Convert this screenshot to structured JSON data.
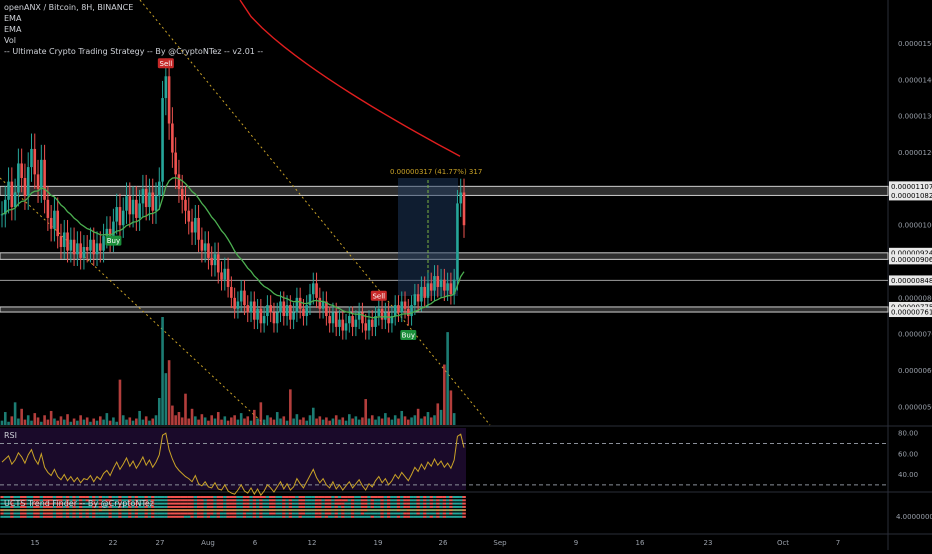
{
  "legend": {
    "symbol": "openANX / Bitcoin, 8H, BINANCE",
    "ema1": "EMA",
    "ema2": "EMA",
    "vol": "Vol",
    "strategy": "-- Ultimate Crypto Trading Strategy -- By @CryptoNTez -- v2.01 --"
  },
  "rsi_label": "RSI",
  "trend_label": "UCTS Trend Finder -- By @CryptoNTez",
  "colors": {
    "background": "#000000",
    "up": "#26a69a",
    "down": "#ef5350",
    "ema_fast": "#4caf50",
    "ema_slow": "#e01e1e",
    "rsi_line": "#c9a227",
    "rsi_fill": "#1a0a2a",
    "trend_line": "#d4b04a",
    "zone": "#555555",
    "measure": "#1e3a5f",
    "buy": "#1b8f3a",
    "sell": "#c62828"
  },
  "chart_data": [
    {
      "type": "candlestick",
      "title": "openANX / Bitcoin, 8H, BINANCE",
      "x_ticks": [
        "15",
        "22",
        "27",
        "Aug",
        "6",
        "12",
        "19",
        "26",
        "Sep",
        "9",
        "16",
        "23",
        "Oct",
        "7"
      ],
      "y_ticks": [
        "0.00001500",
        "0.00001400",
        "0.00001300",
        "0.00001200",
        "0.00001000",
        "0.00000900",
        "0.00000800",
        "0.00000700",
        "0.00000600",
        "0.00000500"
      ],
      "ylim": [
        4.5e-06,
        1.62e-05
      ],
      "price_tags": [
        {
          "value": 1.107e-05,
          "label": "0.00001107"
        },
        {
          "value": 1.082e-05,
          "label": "0.00001082"
        },
        {
          "value": 9.24e-06,
          "label": "0.00000924"
        },
        {
          "value": 9.06e-06,
          "label": "0.00000906"
        },
        {
          "value": 8.48e-06,
          "label": "0.00000848"
        },
        {
          "value": 7.75e-06,
          "label": "0.00000775"
        },
        {
          "value": 7.61e-06,
          "label": "0.00000761"
        }
      ],
      "closes": [
        1.03,
        1.07,
        1.12,
        1.05,
        1.09,
        1.17,
        1.13,
        1.08,
        1.16,
        1.21,
        1.14,
        1.1,
        1.18,
        1.07,
        1.02,
        0.99,
        1.04,
        0.97,
        0.94,
        0.98,
        0.93,
        0.96,
        0.92,
        0.95,
        0.91,
        0.94,
        0.93,
        0.96,
        0.92,
        0.95,
        0.93,
        0.97,
        0.99,
        0.96,
        1.01,
        1.05,
        1.0,
        1.04,
        1.08,
        1.03,
        1.07,
        1.02,
        1.06,
        1.1,
        1.05,
        1.09,
        1.04,
        1.08,
        1.12,
        1.35,
        1.41,
        1.28,
        1.2,
        1.14,
        1.1,
        1.07,
        1.04,
        1.01,
        0.98,
        1.02,
        0.96,
        0.93,
        0.95,
        0.91,
        0.89,
        0.92,
        0.87,
        0.85,
        0.88,
        0.83,
        0.8,
        0.77,
        0.79,
        0.82,
        0.78,
        0.76,
        0.79,
        0.74,
        0.77,
        0.73,
        0.75,
        0.78,
        0.76,
        0.73,
        0.76,
        0.79,
        0.75,
        0.78,
        0.74,
        0.76,
        0.8,
        0.77,
        0.75,
        0.78,
        0.81,
        0.84,
        0.8,
        0.77,
        0.79,
        0.75,
        0.73,
        0.76,
        0.72,
        0.74,
        0.71,
        0.73,
        0.75,
        0.72,
        0.74,
        0.76,
        0.73,
        0.71,
        0.74,
        0.72,
        0.75,
        0.77,
        0.74,
        0.76,
        0.73,
        0.75,
        0.78,
        0.76,
        0.79,
        0.77,
        0.75,
        0.78,
        0.81,
        0.79,
        0.83,
        0.8,
        0.84,
        0.82,
        0.86,
        0.83,
        0.85,
        0.82,
        0.84,
        0.81,
        0.85,
        1.06,
        1.09,
        1.0
      ],
      "volumes": [
        0.4,
        1.2,
        0.3,
        0.8,
        2.1,
        0.6,
        1.5,
        0.5,
        0.9,
        0.4,
        1.1,
        0.7,
        0.3,
        0.9,
        0.5,
        1.3,
        0.6,
        0.4,
        0.8,
        0.5,
        1.0,
        0.3,
        0.6,
        0.4,
        0.9,
        0.5,
        0.7,
        0.3,
        0.6,
        0.4,
        0.8,
        0.5,
        1.1,
        0.4,
        0.7,
        0.3,
        4.2,
        0.9,
        0.5,
        0.7,
        0.4,
        0.6,
        1.3,
        0.5,
        0.8,
        0.4,
        0.6,
        0.9,
        2.5,
        10.0,
        4.8,
        6.0,
        1.8,
        0.9,
        1.2,
        0.7,
        2.9,
        0.6,
        1.5,
        0.8,
        0.5,
        1.0,
        0.7,
        0.4,
        0.9,
        0.6,
        1.2,
        0.5,
        0.8,
        0.4,
        0.7,
        0.9,
        0.5,
        1.1,
        0.6,
        0.8,
        0.4,
        1.4,
        0.6,
        2.1,
        0.5,
        0.9,
        0.7,
        0.5,
        1.2,
        0.6,
        0.8,
        0.4,
        3.3,
        0.6,
        1.0,
        0.5,
        0.7,
        0.4,
        0.9,
        1.6,
        0.6,
        0.8,
        0.5,
        0.7,
        0.4,
        0.6,
        0.9,
        0.5,
        0.7,
        0.4,
        1.0,
        0.6,
        0.8,
        0.5,
        0.7,
        2.4,
        0.6,
        0.9,
        0.5,
        0.8,
        0.6,
        1.1,
        0.7,
        0.5,
        0.9,
        0.6,
        1.3,
        0.8,
        0.5,
        0.7,
        0.9,
        1.5,
        0.6,
        0.8,
        1.2,
        0.7,
        0.9,
        2.0,
        1.4,
        5.6,
        8.6,
        3.2,
        1.1
      ]
    },
    {
      "type": "line",
      "title": "RSI",
      "y_ticks": [
        "80.00",
        "60.00",
        "40.00"
      ],
      "ylim": [
        25,
        85
      ],
      "bands": [
        70,
        30
      ],
      "values": [
        52,
        55,
        58,
        50,
        54,
        61,
        57,
        51,
        59,
        64,
        55,
        50,
        60,
        47,
        42,
        39,
        45,
        38,
        35,
        40,
        34,
        38,
        33,
        37,
        32,
        36,
        35,
        39,
        33,
        38,
        35,
        41,
        44,
        39,
        46,
        52,
        45,
        50,
        56,
        48,
        53,
        46,
        51,
        57,
        49,
        54,
        47,
        52,
        59,
        78,
        80,
        64,
        55,
        48,
        44,
        41,
        38,
        36,
        33,
        39,
        31,
        29,
        33,
        28,
        27,
        32,
        26,
        25,
        30,
        24,
        22,
        21,
        25,
        30,
        24,
        22,
        27,
        21,
        26,
        20,
        24,
        30,
        27,
        23,
        28,
        33,
        26,
        31,
        25,
        28,
        36,
        31,
        27,
        33,
        39,
        45,
        37,
        32,
        36,
        30,
        27,
        33,
        26,
        30,
        25,
        29,
        33,
        27,
        31,
        35,
        29,
        25,
        31,
        28,
        34,
        38,
        32,
        36,
        30,
        34,
        40,
        36,
        42,
        38,
        34,
        40,
        47,
        43,
        50,
        45,
        52,
        48,
        55,
        49,
        53,
        47,
        51,
        46,
        54,
        77,
        79,
        66
      ]
    },
    {
      "type": "heatmap",
      "title": "UCTS Trend Finder -- By @CryptoNTez",
      "y_ticks": [
        "4.00000000"
      ]
    }
  ]
}
